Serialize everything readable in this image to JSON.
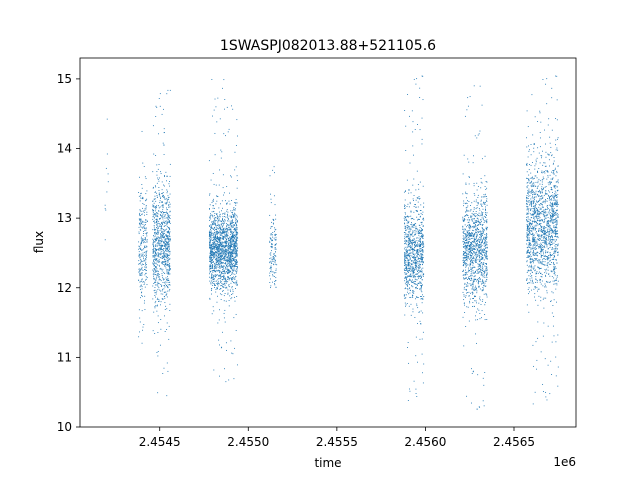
{
  "chart_data": {
    "type": "scatter",
    "title": "1SWASPJ082013.88+521105.6",
    "xlabel": "time",
    "ylabel": "flux",
    "x_offset_label": "1e6",
    "xlim": [
      2.45405,
      2.45685
    ],
    "ylim": [
      10.0,
      15.3
    ],
    "x_ticks": [
      2.4545,
      2.455,
      2.4555,
      2.456,
      2.4565
    ],
    "x_tick_labels": [
      "2.4545",
      "2.4550",
      "2.4555",
      "2.4560",
      "2.4565"
    ],
    "y_ticks": [
      10,
      11,
      12,
      13,
      14,
      15
    ],
    "y_tick_labels": [
      "10",
      "11",
      "12",
      "13",
      "14",
      "15"
    ],
    "grid": false,
    "marker_color": "#1f77b4",
    "series": [
      {
        "clusters": [
          {
            "x_start": 2.45419,
            "x_end": 2.45421,
            "center": 13.0,
            "spread": 0.45,
            "min": 12.6,
            "max": 14.6,
            "count": 12
          },
          {
            "x_start": 2.45438,
            "x_end": 2.45443,
            "center": 12.6,
            "spread": 0.45,
            "min": 11.0,
            "max": 14.5,
            "count": 260
          },
          {
            "x_start": 2.45446,
            "x_end": 2.45456,
            "center": 12.6,
            "spread": 0.42,
            "min": 10.4,
            "max": 14.9,
            "count": 900
          },
          {
            "x_start": 2.45478,
            "x_end": 2.45494,
            "center": 12.55,
            "spread": 0.28,
            "min": 10.6,
            "max": 15.0,
            "count": 1700
          },
          {
            "x_start": 2.45512,
            "x_end": 2.45516,
            "center": 12.5,
            "spread": 0.28,
            "min": 12.0,
            "max": 13.9,
            "count": 140
          },
          {
            "x_start": 2.45588,
            "x_end": 2.45599,
            "center": 12.5,
            "spread": 0.35,
            "min": 10.3,
            "max": 15.05,
            "count": 900
          },
          {
            "x_start": 2.45621,
            "x_end": 2.45635,
            "center": 12.55,
            "spread": 0.38,
            "min": 10.2,
            "max": 15.05,
            "count": 1100
          },
          {
            "x_start": 2.45657,
            "x_end": 2.45675,
            "center": 12.9,
            "spread": 0.45,
            "min": 10.25,
            "max": 15.05,
            "count": 1500
          }
        ]
      }
    ]
  }
}
